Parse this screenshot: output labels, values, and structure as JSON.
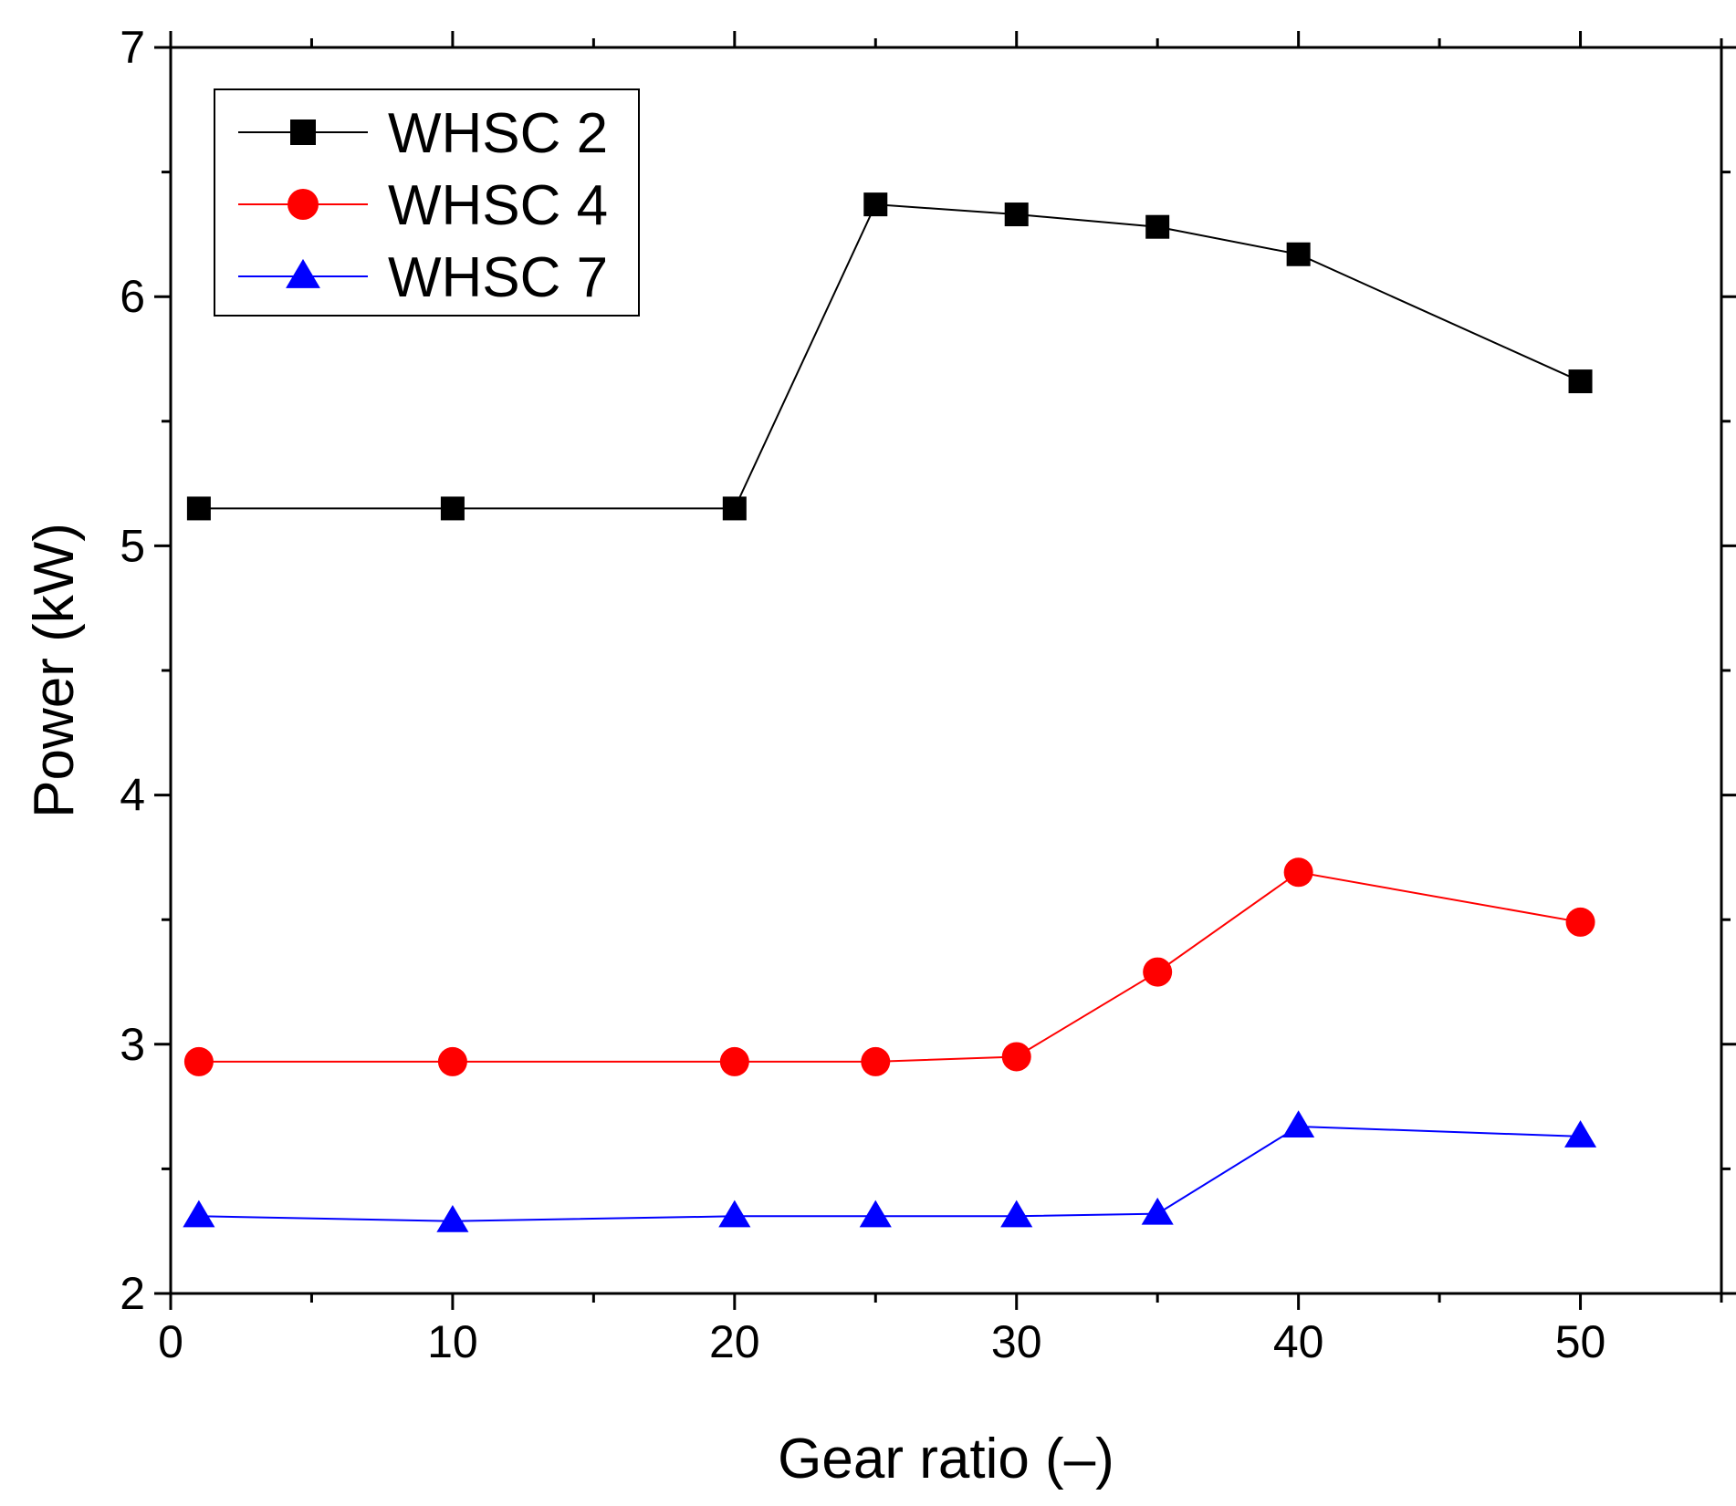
{
  "chart_data": {
    "type": "line",
    "title": "",
    "xlabel": "Gear ratio (–)",
    "ylabel": "Power (kW)",
    "xlim": [
      0,
      55
    ],
    "ylim": [
      2,
      7
    ],
    "xticks": [
      0,
      10,
      20,
      30,
      40,
      50
    ],
    "yticks": [
      2,
      3,
      4,
      5,
      6,
      7
    ],
    "xticklabels": [
      "0",
      "10",
      "20",
      "30",
      "40",
      "50"
    ],
    "yticklabels": [
      "2",
      "3",
      "4",
      "5",
      "6",
      "7"
    ],
    "grid": false,
    "legend_position": "top-left",
    "series": [
      {
        "name": "WHSC 2",
        "color": "#000000",
        "marker": "square",
        "x": [
          1,
          10,
          20,
          25,
          30,
          35,
          40,
          50
        ],
        "values": [
          5.15,
          5.15,
          5.15,
          6.37,
          6.33,
          6.28,
          6.17,
          5.66
        ]
      },
      {
        "name": "WHSC 4",
        "color": "#ff0000",
        "marker": "circle",
        "x": [
          1,
          10,
          20,
          25,
          30,
          35,
          40,
          50
        ],
        "values": [
          2.93,
          2.93,
          2.93,
          2.93,
          2.95,
          3.29,
          3.69,
          3.49
        ]
      },
      {
        "name": "WHSC 7",
        "color": "#0000ff",
        "marker": "triangle",
        "x": [
          1,
          10,
          20,
          25,
          30,
          35,
          40,
          50
        ],
        "values": [
          2.31,
          2.29,
          2.31,
          2.31,
          2.31,
          2.32,
          2.67,
          2.63
        ]
      }
    ]
  }
}
